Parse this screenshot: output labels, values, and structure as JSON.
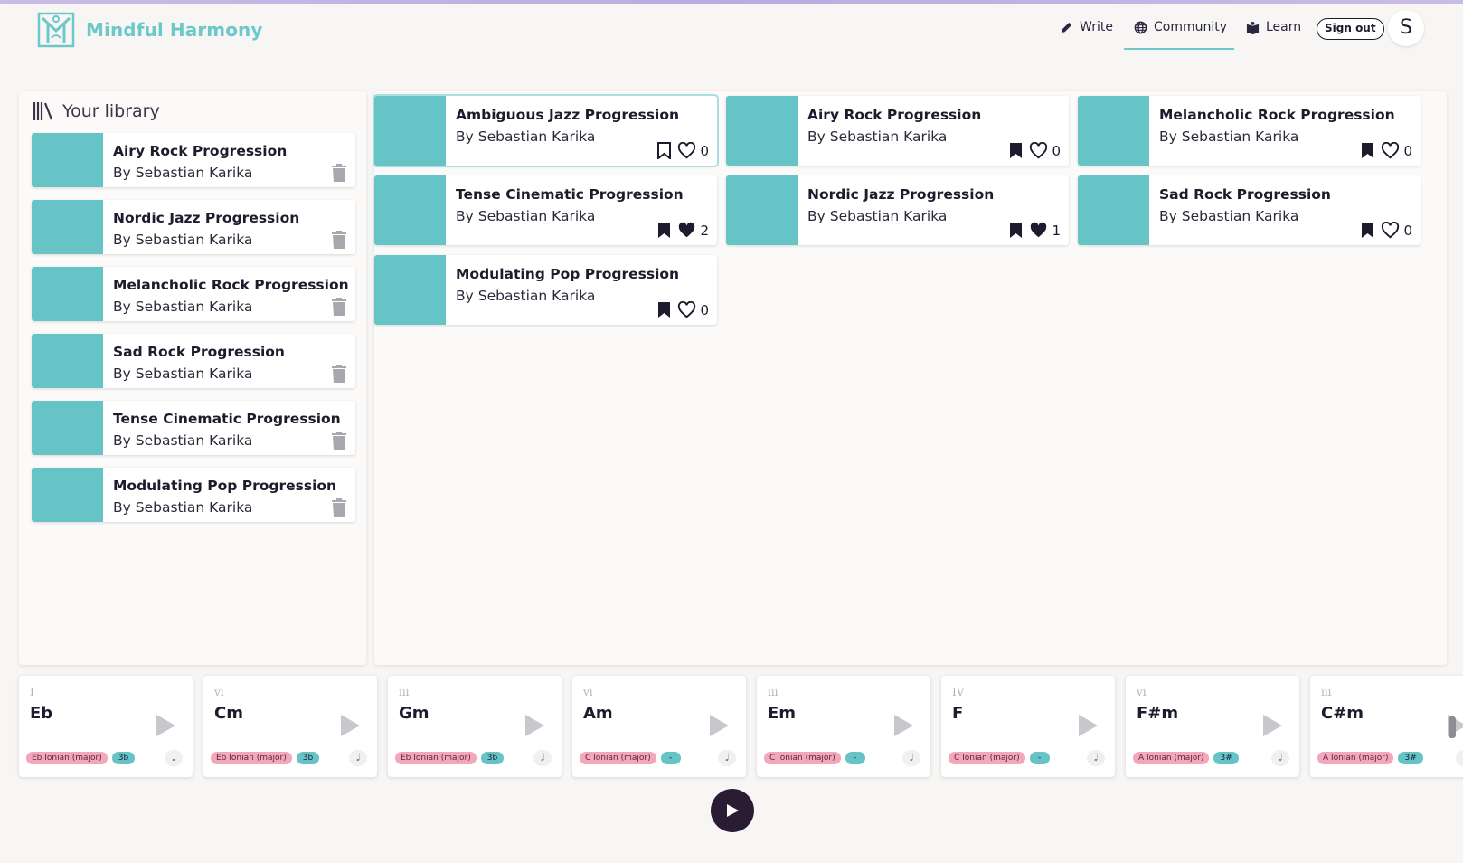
{
  "brand": {
    "name": "Mindful Harmony"
  },
  "nav": {
    "write": "Write",
    "community": "Community",
    "learn": "Learn",
    "sign_out": "Sign out",
    "avatar_initial": "S"
  },
  "colors": {
    "accent": "#6cc8c9",
    "thumb": "#66c4c6",
    "dark": "#2a1d33",
    "scale_tag": "#f2a7bd"
  },
  "library": {
    "title": "Your library",
    "items": [
      {
        "title": "Airy Rock Progression",
        "author": "By Sebastian Karika"
      },
      {
        "title": "Nordic Jazz Progression",
        "author": "By Sebastian Karika"
      },
      {
        "title": "Melancholic Rock Progression",
        "author": "By Sebastian Karika"
      },
      {
        "title": "Sad Rock Progression",
        "author": "By Sebastian Karika"
      },
      {
        "title": "Tense Cinematic Progression",
        "author": "By Sebastian Karika"
      },
      {
        "title": "Modulating Pop Progression",
        "author": "By Sebastian Karika"
      }
    ]
  },
  "community": {
    "cards": [
      {
        "title": "Ambiguous Jazz Progression",
        "author": "By Sebastian Karika",
        "bookmarked": false,
        "liked": false,
        "likes": "0"
      },
      {
        "title": "Airy Rock Progression",
        "author": "By Sebastian Karika",
        "bookmarked": true,
        "liked": false,
        "likes": "0"
      },
      {
        "title": "Melancholic Rock Progression",
        "author": "By Sebastian Karika",
        "bookmarked": true,
        "liked": false,
        "likes": "0"
      },
      {
        "title": "Tense Cinematic Progression",
        "author": "By Sebastian Karika",
        "bookmarked": true,
        "liked": true,
        "likes": "2"
      },
      {
        "title": "Nordic Jazz Progression",
        "author": "By Sebastian Karika",
        "bookmarked": true,
        "liked": true,
        "likes": "1"
      },
      {
        "title": "Sad Rock Progression",
        "author": "By Sebastian Karika",
        "bookmarked": true,
        "liked": false,
        "likes": "0"
      },
      {
        "title": "Modulating Pop Progression",
        "author": "By Sebastian Karika",
        "bookmarked": true,
        "liked": false,
        "likes": "0"
      }
    ]
  },
  "chords": [
    {
      "numeral": "I",
      "name": "Eb",
      "scale": "Eb Ionian (major)",
      "accidentals": "3b",
      "duration": "𝅗𝅥"
    },
    {
      "numeral": "vi",
      "name": "Cm",
      "scale": "Eb Ionian (major)",
      "accidentals": "3b",
      "duration": "𝅗𝅥"
    },
    {
      "numeral": "iii",
      "name": "Gm",
      "scale": "Eb Ionian (major)",
      "accidentals": "3b",
      "duration": "𝅗𝅥"
    },
    {
      "numeral": "vi",
      "name": "Am",
      "scale": "C Ionian (major)",
      "accidentals": "-",
      "duration": "𝅗𝅥"
    },
    {
      "numeral": "iii",
      "name": "Em",
      "scale": "C Ionian (major)",
      "accidentals": "-",
      "duration": "𝅗𝅥"
    },
    {
      "numeral": "IV",
      "name": "F",
      "scale": "C Ionian (major)",
      "accidentals": "-",
      "duration": "𝅗𝅥"
    },
    {
      "numeral": "vi",
      "name": "F#m",
      "scale": "A Ionian (major)",
      "accidentals": "3#",
      "duration": "𝅗𝅥"
    },
    {
      "numeral": "iii",
      "name": "C#m",
      "scale": "A Ionian (major)",
      "accidentals": "3#",
      "duration": "𝅗𝅥"
    }
  ]
}
